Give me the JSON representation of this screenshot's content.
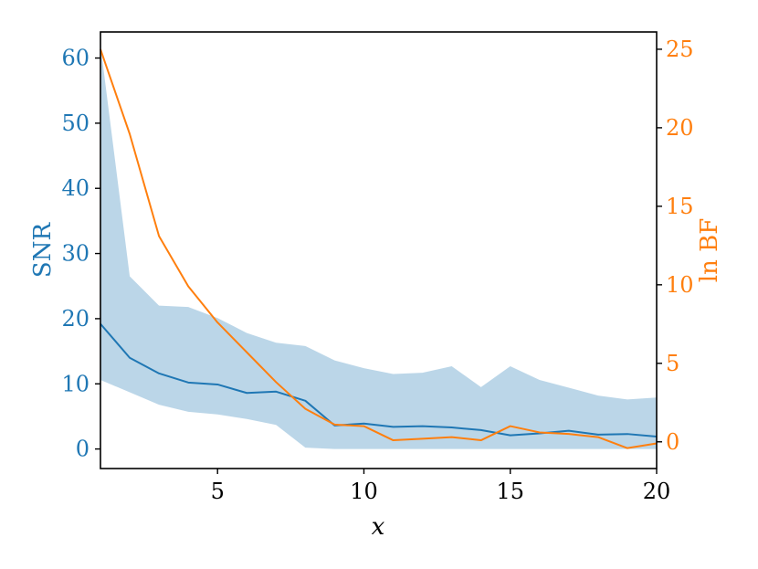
{
  "chart_data": {
    "type": "line",
    "xlabel": "x",
    "ylabel_left": "SNR",
    "ylabel_right": "ln BF",
    "xlim": [
      1,
      20
    ],
    "ylim_left": [
      -3,
      64
    ],
    "ylim_right": [
      -1.7,
      26.1
    ],
    "xticks": [
      5,
      10,
      15,
      20
    ],
    "yticks_left": [
      0,
      10,
      20,
      30,
      40,
      50,
      60
    ],
    "yticks_right": [
      0,
      5,
      10,
      15,
      20,
      25
    ],
    "colors": {
      "snr": "#1f77b4",
      "band": "#1f77b4",
      "bf": "#ff7f0e",
      "axis": "#000000"
    },
    "x": [
      1,
      2,
      3,
      4,
      5,
      6,
      7,
      8,
      9,
      10,
      11,
      12,
      13,
      14,
      15,
      16,
      17,
      18,
      19,
      20
    ],
    "series": [
      {
        "axis": "left",
        "values": [
          19.2,
          14.0,
          11.6,
          10.2,
          9.9,
          8.6,
          8.8,
          7.4,
          3.6,
          3.9,
          3.4,
          3.5,
          3.3,
          2.9,
          2.1,
          2.4,
          2.8,
          2.2,
          2.3,
          1.9
        ]
      },
      {
        "axis": "left",
        "type": "area-band",
        "lower": [
          10.6,
          8.7,
          6.8,
          5.7,
          5.3,
          4.6,
          3.7,
          0.2,
          0.0,
          0.0,
          0.0,
          0.0,
          0.0,
          0.0,
          0.0,
          0.0,
          0.0,
          0.0,
          0.0,
          0.0
        ],
        "upper": [
          62.0,
          26.5,
          22.0,
          21.8,
          20.1,
          17.8,
          16.3,
          15.8,
          13.6,
          12.4,
          11.5,
          11.7,
          12.7,
          9.5,
          12.7,
          10.6,
          9.4,
          8.2,
          7.6,
          7.9
        ]
      },
      {
        "axis": "right",
        "values": [
          25.0,
          19.6,
          13.1,
          9.9,
          7.6,
          5.7,
          3.8,
          2.1,
          1.1,
          1.0,
          0.1,
          0.2,
          0.3,
          0.1,
          1.0,
          0.6,
          0.5,
          0.3,
          -0.4,
          -0.1
        ]
      }
    ]
  }
}
